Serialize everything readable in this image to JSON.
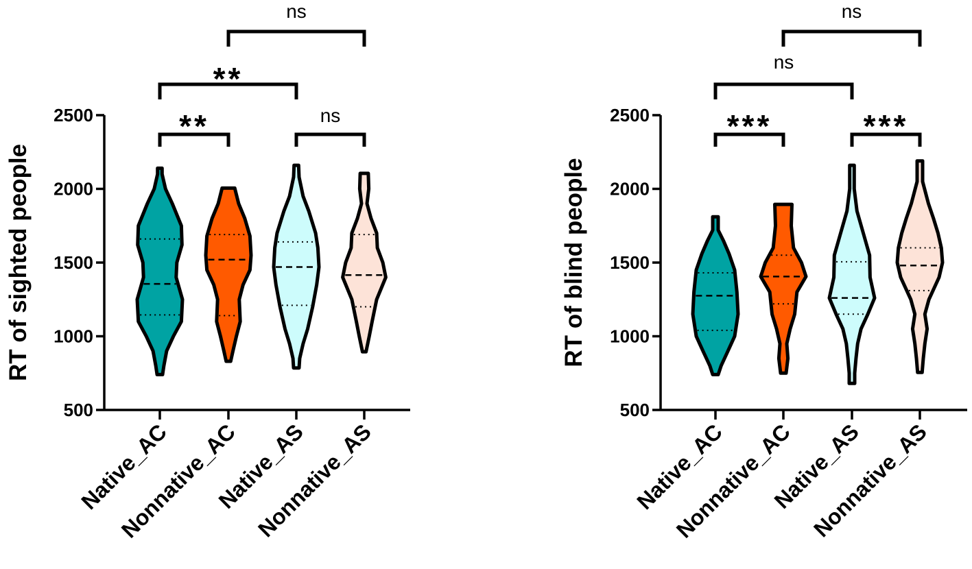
{
  "chart_data": [
    {
      "type": "violin",
      "ylabel": "RT of sighted people",
      "xlabel": "",
      "ylim": [
        500,
        2500
      ],
      "yticks": [
        500,
        1000,
        1500,
        2000,
        2500
      ],
      "categories": [
        "Native_AC",
        "Nonnative_AC",
        "Native_AS",
        "Nonnative_AS"
      ],
      "colors": [
        "#00a3a3",
        "#ff5a00",
        "#cdfcfc",
        "#fde3d8"
      ],
      "series": [
        {
          "name": "Native_AC",
          "min": 740,
          "max": 2140,
          "q1": 1145,
          "median": 1355,
          "q3": 1660,
          "shape": [
            [
              740,
              0.12
            ],
            [
              800,
              0.18
            ],
            [
              900,
              0.3
            ],
            [
              1000,
              0.6
            ],
            [
              1100,
              0.95
            ],
            [
              1250,
              1.0
            ],
            [
              1400,
              0.72
            ],
            [
              1500,
              0.75
            ],
            [
              1620,
              0.98
            ],
            [
              1750,
              0.95
            ],
            [
              1900,
              0.55
            ],
            [
              2000,
              0.25
            ],
            [
              2100,
              0.1
            ],
            [
              2140,
              0.1
            ]
          ]
        },
        {
          "name": "Nonnative_AC",
          "min": 830,
          "max": 2005,
          "q1": 1140,
          "median": 1520,
          "q3": 1690,
          "shape": [
            [
              830,
              0.1
            ],
            [
              900,
              0.2
            ],
            [
              1000,
              0.35
            ],
            [
              1100,
              0.52
            ],
            [
              1250,
              0.48
            ],
            [
              1350,
              0.65
            ],
            [
              1450,
              0.95
            ],
            [
              1550,
              1.0
            ],
            [
              1680,
              0.95
            ],
            [
              1800,
              0.72
            ],
            [
              1900,
              0.45
            ],
            [
              2005,
              0.28
            ]
          ]
        },
        {
          "name": "Native_AS",
          "min": 785,
          "max": 2160,
          "q1": 1210,
          "median": 1470,
          "q3": 1640,
          "shape": [
            [
              785,
              0.12
            ],
            [
              850,
              0.15
            ],
            [
              950,
              0.3
            ],
            [
              1050,
              0.5
            ],
            [
              1200,
              0.72
            ],
            [
              1350,
              0.9
            ],
            [
              1470,
              1.0
            ],
            [
              1600,
              0.95
            ],
            [
              1700,
              0.85
            ],
            [
              1850,
              0.55
            ],
            [
              1950,
              0.3
            ],
            [
              2080,
              0.12
            ],
            [
              2160,
              0.1
            ]
          ]
        },
        {
          "name": "Nonnative_AS",
          "min": 895,
          "max": 2105,
          "q1": 1200,
          "median": 1415,
          "q3": 1690,
          "shape": [
            [
              895,
              0.08
            ],
            [
              1000,
              0.22
            ],
            [
              1100,
              0.35
            ],
            [
              1250,
              0.55
            ],
            [
              1400,
              0.95
            ],
            [
              1500,
              0.82
            ],
            [
              1600,
              0.58
            ],
            [
              1700,
              0.55
            ],
            [
              1800,
              0.3
            ],
            [
              1900,
              0.12
            ],
            [
              2000,
              0.2
            ],
            [
              2105,
              0.18
            ]
          ]
        }
      ],
      "comparisons": [
        {
          "from": "Native_AC",
          "to": "Nonnative_AC",
          "label": "**"
        },
        {
          "from": "Native_AS",
          "to": "Nonnative_AS",
          "label": "ns"
        },
        {
          "from": "Native_AC",
          "to": "Native_AS",
          "label": "**"
        },
        {
          "from": "Nonnative_AC",
          "to": "Nonnative_AS",
          "label": "ns"
        }
      ]
    },
    {
      "type": "violin",
      "ylabel": "RT of blind people",
      "xlabel": "",
      "ylim": [
        500,
        2500
      ],
      "yticks": [
        500,
        1000,
        1500,
        2000,
        2500
      ],
      "categories": [
        "Native_AC",
        "Nonnative_AC",
        "Native_AS",
        "Nonnative_AS"
      ],
      "colors": [
        "#00a3a3",
        "#ff5a00",
        "#cdfcfc",
        "#fde3d8"
      ],
      "series": [
        {
          "name": "Native_AC",
          "min": 740,
          "max": 1810,
          "q1": 1040,
          "median": 1275,
          "q3": 1430,
          "shape": [
            [
              740,
              0.12
            ],
            [
              800,
              0.25
            ],
            [
              900,
              0.55
            ],
            [
              1000,
              0.85
            ],
            [
              1150,
              1.0
            ],
            [
              1300,
              0.95
            ],
            [
              1450,
              0.85
            ],
            [
              1560,
              0.6
            ],
            [
              1650,
              0.35
            ],
            [
              1720,
              0.12
            ],
            [
              1810,
              0.12
            ]
          ]
        },
        {
          "name": "Nonnative_AC",
          "min": 750,
          "max": 1895,
          "q1": 1220,
          "median": 1405,
          "q3": 1550,
          "shape": [
            [
              750,
              0.12
            ],
            [
              850,
              0.2
            ],
            [
              950,
              0.15
            ],
            [
              1050,
              0.3
            ],
            [
              1150,
              0.5
            ],
            [
              1300,
              0.6
            ],
            [
              1405,
              1.0
            ],
            [
              1500,
              0.8
            ],
            [
              1600,
              0.45
            ],
            [
              1750,
              0.35
            ],
            [
              1895,
              0.38
            ]
          ]
        },
        {
          "name": "Native_AS",
          "min": 680,
          "max": 2160,
          "q1": 1150,
          "median": 1260,
          "q3": 1505,
          "shape": [
            [
              680,
              0.12
            ],
            [
              750,
              0.12
            ],
            [
              850,
              0.18
            ],
            [
              950,
              0.25
            ],
            [
              1050,
              0.4
            ],
            [
              1150,
              0.7
            ],
            [
              1260,
              1.0
            ],
            [
              1400,
              0.8
            ],
            [
              1550,
              0.78
            ],
            [
              1700,
              0.5
            ],
            [
              1850,
              0.22
            ],
            [
              2000,
              0.1
            ],
            [
              2160,
              0.1
            ]
          ]
        },
        {
          "name": "Nonnative_AS",
          "min": 755,
          "max": 2190,
          "q1": 1310,
          "median": 1480,
          "q3": 1600,
          "shape": [
            [
              755,
              0.1
            ],
            [
              850,
              0.15
            ],
            [
              950,
              0.22
            ],
            [
              1050,
              0.32
            ],
            [
              1150,
              0.22
            ],
            [
              1250,
              0.4
            ],
            [
              1400,
              0.85
            ],
            [
              1500,
              1.0
            ],
            [
              1600,
              0.95
            ],
            [
              1700,
              0.8
            ],
            [
              1800,
              0.6
            ],
            [
              1900,
              0.38
            ],
            [
              2050,
              0.12
            ],
            [
              2190,
              0.12
            ]
          ]
        }
      ],
      "comparisons": [
        {
          "from": "Native_AC",
          "to": "Nonnative_AC",
          "label": "***"
        },
        {
          "from": "Native_AS",
          "to": "Nonnative_AS",
          "label": "***"
        },
        {
          "from": "Native_AC",
          "to": "Native_AS",
          "label": "ns"
        },
        {
          "from": "Nonnative_AC",
          "to": "Nonnative_AS",
          "label": "ns"
        }
      ]
    }
  ]
}
